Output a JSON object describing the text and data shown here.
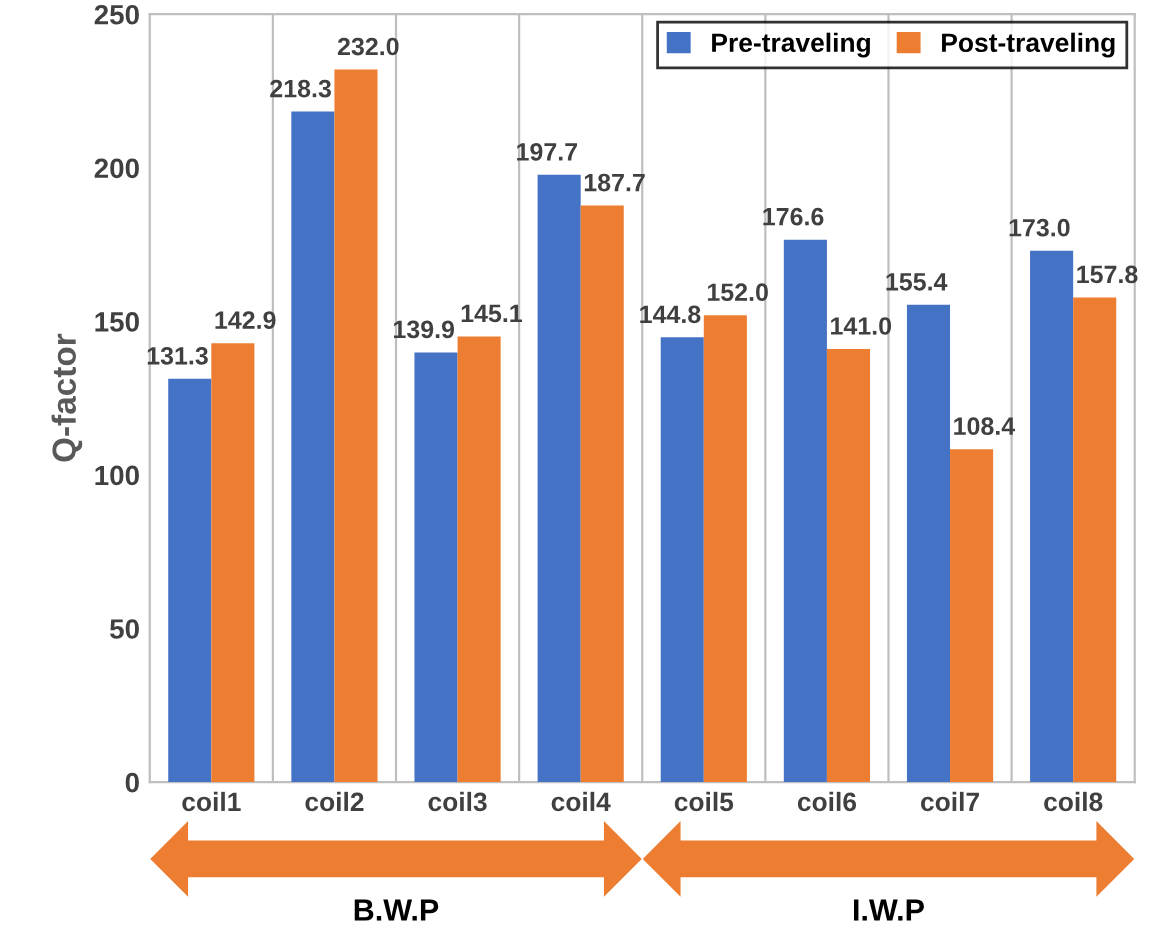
{
  "chart_data": {
    "type": "bar",
    "ylabel": "Q-factor",
    "categories": [
      "coil1",
      "coil2",
      "coil3",
      "coil4",
      "coil5",
      "coil6",
      "coil7",
      "coil8"
    ],
    "series": [
      {
        "name": "Pre-traveling",
        "color": "#4472c4",
        "values": [
          131.3,
          218.3,
          139.9,
          197.7,
          144.8,
          176.6,
          155.4,
          173.0
        ],
        "value_labels": [
          "131.3",
          "218.3",
          "139.9",
          "197.7",
          "144.8",
          "176.6",
          "155.4",
          "173.0"
        ]
      },
      {
        "name": "Post-traveling",
        "color": "#ed7d31",
        "values": [
          142.9,
          232.0,
          145.1,
          187.7,
          152.0,
          141.0,
          108.4,
          157.8
        ],
        "value_labels": [
          "142.9",
          "232.0",
          "145.1",
          "187.7",
          "152.0",
          "141.0",
          "108.4",
          "157.8"
        ]
      }
    ],
    "ylim": [
      0,
      250
    ],
    "yticks": [
      0,
      50,
      100,
      150,
      200,
      250
    ],
    "grid": "x",
    "legend": "top right",
    "annotations": [
      "B.W.P",
      "I.W.P"
    ]
  }
}
